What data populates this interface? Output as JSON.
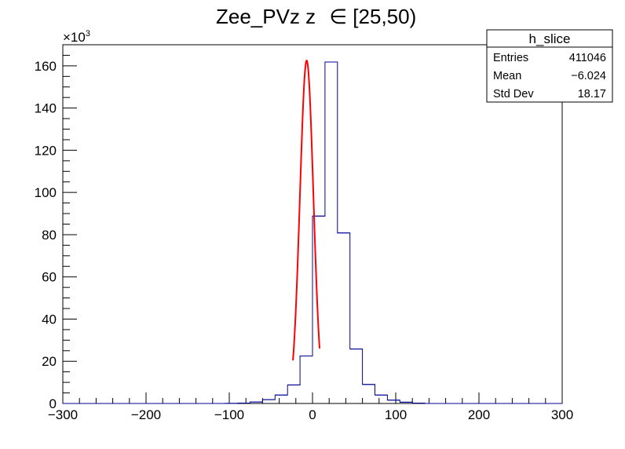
{
  "chart_data": {
    "type": "histogram",
    "title": "Zee_PVz z",
    "title_symbol": "∈",
    "title_range": "[25,50)",
    "xlabel": "",
    "ylabel": "",
    "xlim": [
      -300,
      300
    ],
    "ylim": [
      0,
      170000
    ],
    "y_multiplier_label": "×10",
    "y_multiplier_exp": "3",
    "y_ticks": [
      0,
      20,
      40,
      60,
      80,
      100,
      120,
      140,
      160
    ],
    "x_ticks": [
      -300,
      -200,
      -100,
      0,
      100,
      200,
      300
    ],
    "x_tick_labels": [
      "−300",
      "−200",
      "−100",
      "0",
      "100",
      "200",
      "300"
    ],
    "bin_width": 15,
    "bins": [
      {
        "x": -300,
        "y": 0
      },
      {
        "x": -285,
        "y": 0
      },
      {
        "x": -270,
        "y": 0
      },
      {
        "x": -255,
        "y": 0
      },
      {
        "x": -240,
        "y": 0
      },
      {
        "x": -225,
        "y": 0
      },
      {
        "x": -210,
        "y": 0
      },
      {
        "x": -195,
        "y": 0
      },
      {
        "x": -180,
        "y": 0
      },
      {
        "x": -165,
        "y": 0
      },
      {
        "x": -150,
        "y": 0
      },
      {
        "x": -135,
        "y": 0
      },
      {
        "x": -120,
        "y": 0
      },
      {
        "x": -105,
        "y": 50
      },
      {
        "x": -90,
        "y": 200
      },
      {
        "x": -75,
        "y": 700
      },
      {
        "x": -60,
        "y": 1800
      },
      {
        "x": -45,
        "y": 4000
      },
      {
        "x": -30,
        "y": 8800
      },
      {
        "x": -15,
        "y": 22500
      },
      {
        "x": 0,
        "y": 88800
      },
      {
        "x": 15,
        "y": 161800
      },
      {
        "x": 30,
        "y": 80800
      },
      {
        "x": 45,
        "y": 25800
      },
      {
        "x": 60,
        "y": 9000
      },
      {
        "x": 75,
        "y": 4000
      },
      {
        "x": 90,
        "y": 1600
      },
      {
        "x": 105,
        "y": 600
      },
      {
        "x": 120,
        "y": 200
      },
      {
        "x": 135,
        "y": 0
      },
      {
        "x": 150,
        "y": 0
      },
      {
        "x": 165,
        "y": 0
      },
      {
        "x": 180,
        "y": 0
      },
      {
        "x": 195,
        "y": 0
      },
      {
        "x": 210,
        "y": 0
      },
      {
        "x": 225,
        "y": 0
      },
      {
        "x": 240,
        "y": 0
      },
      {
        "x": 255,
        "y": 0
      },
      {
        "x": 270,
        "y": 0
      },
      {
        "x": 285,
        "y": 0
      }
    ],
    "fit": {
      "type": "gaussian",
      "amplitude": 162500,
      "mean": -7.0,
      "sigma": 8.1,
      "x_range": [
        -23.5,
        8.5
      ]
    },
    "histogram_color": "#000099",
    "fit_color": "#ff0000",
    "stats": {
      "name": "h_slice",
      "rows": [
        {
          "label": "Entries",
          "value": "411046"
        },
        {
          "label": "Mean",
          "value": "−6.024"
        },
        {
          "label": "Std Dev",
          "value": "18.17"
        }
      ]
    }
  }
}
